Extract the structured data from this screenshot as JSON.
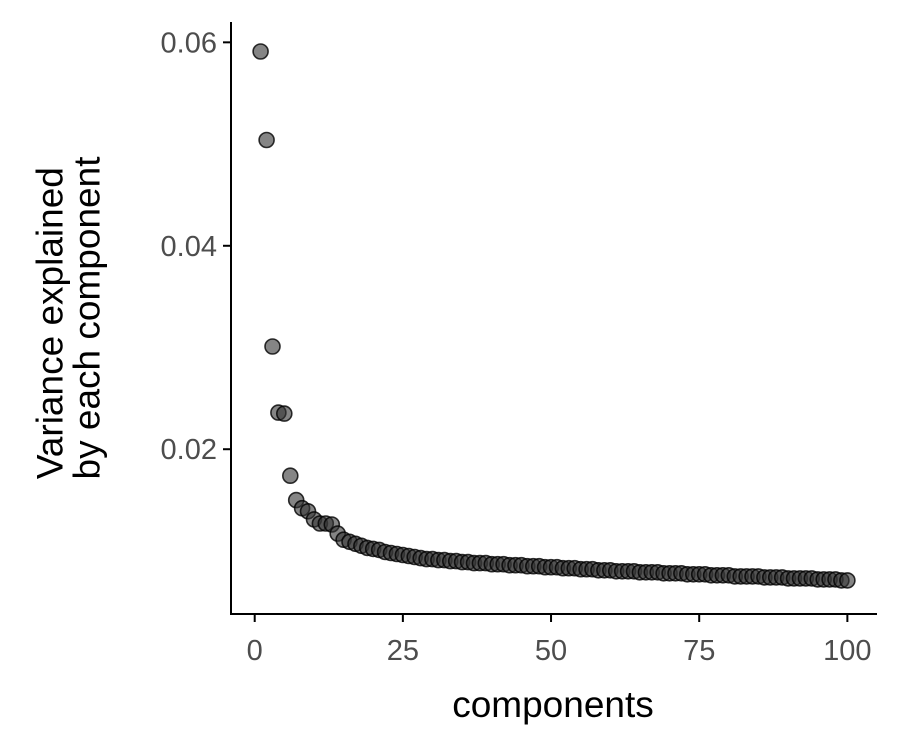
{
  "chart_data": {
    "type": "scatter",
    "xlabel": "components",
    "ylabel_lines": [
      "Variance explained",
      "by each component"
    ],
    "xlim": [
      -4,
      105
    ],
    "ylim": [
      0.0038,
      0.062
    ],
    "x_ticks": [
      {
        "value": 0,
        "label": "0"
      },
      {
        "value": 25,
        "label": "25"
      },
      {
        "value": 50,
        "label": "50"
      },
      {
        "value": 75,
        "label": "75"
      },
      {
        "value": 100,
        "label": "100"
      }
    ],
    "y_ticks": [
      {
        "value": 0.02,
        "label": "0.02"
      },
      {
        "value": 0.04,
        "label": "0.04"
      },
      {
        "value": 0.06,
        "label": "0.06"
      }
    ],
    "grid": false,
    "point_color": "#333333",
    "x": [
      1,
      2,
      3,
      4,
      5,
      6,
      7,
      8,
      9,
      10,
      11,
      12,
      13,
      14,
      15,
      16,
      17,
      18,
      19,
      20,
      21,
      22,
      23,
      24,
      25,
      26,
      27,
      28,
      29,
      30,
      31,
      32,
      33,
      34,
      35,
      36,
      37,
      38,
      39,
      40,
      41,
      42,
      43,
      44,
      45,
      46,
      47,
      48,
      49,
      50,
      51,
      52,
      53,
      54,
      55,
      56,
      57,
      58,
      59,
      60,
      61,
      62,
      63,
      64,
      65,
      66,
      67,
      68,
      69,
      70,
      71,
      72,
      73,
      74,
      75,
      76,
      77,
      78,
      79,
      80,
      81,
      82,
      83,
      84,
      85,
      86,
      87,
      88,
      89,
      90,
      91,
      92,
      93,
      94,
      95,
      96,
      97,
      98,
      99,
      100
    ],
    "y": [
      0.0591,
      0.0504,
      0.0301,
      0.0236,
      0.0235,
      0.0174,
      0.015,
      0.0142,
      0.0139,
      0.0131,
      0.0127,
      0.0127,
      0.0126,
      0.0117,
      0.0111,
      0.0109,
      0.0107,
      0.0105,
      0.0103,
      0.0102,
      0.0101,
      0.0099,
      0.0098,
      0.0097,
      0.0096,
      0.0095,
      0.0094,
      0.0093,
      0.0092,
      0.0092,
      0.0091,
      0.0091,
      0.009,
      0.009,
      0.0089,
      0.0089,
      0.0088,
      0.0088,
      0.0088,
      0.0087,
      0.0087,
      0.0087,
      0.0086,
      0.0086,
      0.0086,
      0.0085,
      0.0085,
      0.0085,
      0.0084,
      0.0084,
      0.0084,
      0.0083,
      0.0083,
      0.0083,
      0.0082,
      0.0082,
      0.0082,
      0.0081,
      0.0081,
      0.0081,
      0.008,
      0.008,
      0.008,
      0.008,
      0.0079,
      0.0079,
      0.0079,
      0.0079,
      0.0078,
      0.0078,
      0.0078,
      0.0078,
      0.0077,
      0.0077,
      0.0077,
      0.0077,
      0.0076,
      0.0076,
      0.0076,
      0.0076,
      0.0075,
      0.0075,
      0.0075,
      0.0075,
      0.0075,
      0.0074,
      0.0074,
      0.0074,
      0.0074,
      0.0073,
      0.0073,
      0.0073,
      0.0073,
      0.0073,
      0.0072,
      0.0072,
      0.0072,
      0.0072,
      0.0071,
      0.0071
    ]
  }
}
